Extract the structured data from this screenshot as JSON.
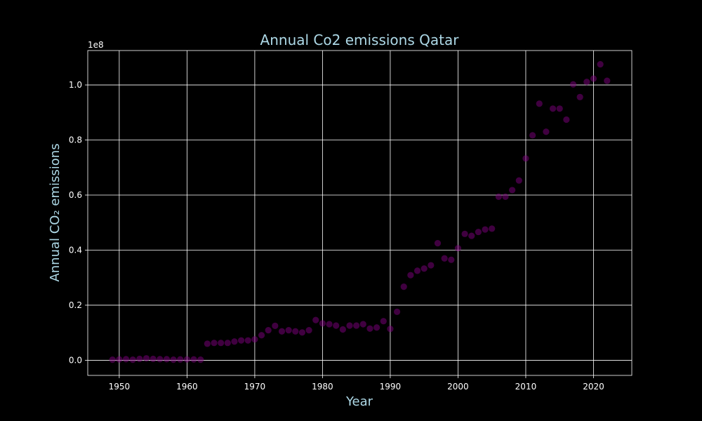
{
  "chart_data": {
    "type": "scatter",
    "title": "Annual Co2 emissions Qatar",
    "xlabel": "Year",
    "ylabel": "Annual CO₂ emissions",
    "y_offset_label": "1e8",
    "xlim": [
      1945.35,
      2025.65
    ],
    "ylim": [
      -5500000,
      112500000
    ],
    "x_ticks": [
      1950,
      1960,
      1970,
      1980,
      1990,
      2000,
      2010,
      2020
    ],
    "y_ticks": [
      0.0,
      0.2,
      0.4,
      0.6,
      0.8,
      1.0
    ],
    "y_tick_labels": [
      "0.0",
      "0.2",
      "0.4",
      "0.6",
      "0.8",
      "1.0"
    ],
    "y_tick_scale": 100000000,
    "grid": true,
    "marker_color": "#800080",
    "marker_opacity": 0.5,
    "accent_color": "#add8e6",
    "series": [
      {
        "x": [
          1949,
          1950,
          1951,
          1952,
          1953,
          1954,
          1955,
          1956,
          1957,
          1958,
          1959,
          1960,
          1961,
          1962,
          1963,
          1964,
          1965,
          1966,
          1967,
          1968,
          1969,
          1970,
          1971,
          1972,
          1973,
          1974,
          1975,
          1976,
          1977,
          1978,
          1979,
          1980,
          1981,
          1982,
          1983,
          1984,
          1985,
          1986,
          1987,
          1988,
          1989,
          1990,
          1991,
          1992,
          1993,
          1994,
          1995,
          1996,
          1997,
          1998,
          1999,
          2000,
          2001,
          2002,
          2003,
          2004,
          2005,
          2006,
          2007,
          2008,
          2009,
          2010,
          2011,
          2012,
          2013,
          2014,
          2015,
          2016,
          2017,
          2018,
          2019,
          2020,
          2021,
          2022
        ],
        "y": [
          200000,
          300000,
          400000,
          200000,
          500000,
          700000,
          500000,
          400000,
          400000,
          200000,
          300000,
          300000,
          300000,
          200000,
          6000000,
          6300000,
          6300000,
          6300000,
          6800000,
          7200000,
          7200000,
          7600000,
          9100000,
          10900000,
          12500000,
          10500000,
          10900000,
          10500000,
          10100000,
          10900000,
          14600000,
          13400000,
          13100000,
          12600000,
          11200000,
          12600000,
          12600000,
          13100000,
          11500000,
          11900000,
          14200000,
          11400000,
          17600000,
          26700000,
          30900000,
          32500000,
          33300000,
          34500000,
          42500000,
          37000000,
          36500000,
          40700000,
          45900000,
          45200000,
          46600000,
          47500000,
          47800000,
          59400000,
          59400000,
          61800000,
          65300000,
          73300000,
          81700000,
          93200000,
          83000000,
          91400000,
          91400000,
          87400000,
          100200000,
          95600000,
          101100000,
          102300000,
          107500000,
          101500000
        ]
      }
    ]
  }
}
